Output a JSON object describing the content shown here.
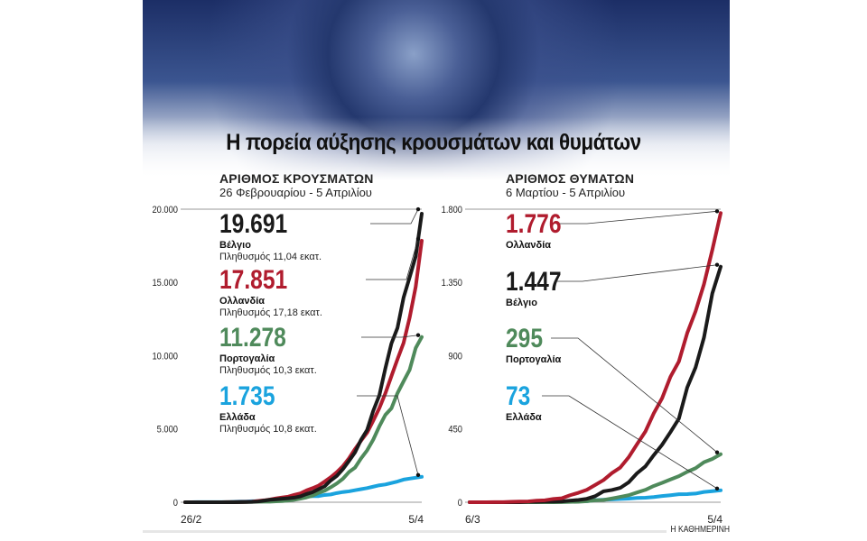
{
  "title": "Η πορεία αύξησης κρουσμάτων και θυμάτων",
  "credit": "Η ΚΑΘΗΜΕΡΙΝΗ",
  "chart_data": [
    {
      "type": "line",
      "title": "ΑΡΙΘΜΟΣ ΚΡΟΥΣΜΑΤΩΝ",
      "subtitle": "26 Φεβρουαρίου - 5 Απριλίου",
      "x_tick_labels": [
        "26/2",
        "5/4"
      ],
      "y_ticks": [
        0,
        5000,
        10000,
        15000,
        20000
      ],
      "y_tick_labels": [
        "0",
        "5.000",
        "10.000",
        "15.000",
        "20.000"
      ],
      "ylim": [
        0,
        20000
      ],
      "grid": "top line only",
      "series": [
        {
          "name": "Βέλγιο",
          "label": "19.691",
          "note": "Πληθυσμός 11,04 εκατ.",
          "color": "#1a1a1a",
          "values": [
            0,
            0,
            0,
            0,
            0,
            0,
            1,
            1,
            2,
            8,
            13,
            23,
            50,
            109,
            169,
            200,
            239,
            267,
            314,
            399,
            559,
            689,
            886,
            1085,
            1486,
            1795,
            2257,
            2815,
            3401,
            4269,
            4937,
            6235,
            7284,
            9134,
            10836,
            11899,
            13964,
            15348,
            16770,
            19691
          ]
        },
        {
          "name": "Ολλανδία",
          "label": "17.851",
          "note": "Πληθυσμός 17,18 εκατ.",
          "color": "#b01c2e",
          "values": [
            0,
            0,
            0,
            0,
            1,
            1,
            2,
            7,
            10,
            18,
            24,
            38,
            82,
            128,
            188,
            265,
            321,
            382,
            503,
            603,
            804,
            959,
            1135,
            1413,
            1705,
            2051,
            2460,
            2994,
            3631,
            4204,
            4749,
            5560,
            6412,
            7431,
            8603,
            9762,
            10866,
            12595,
            14697,
            17851
          ]
        },
        {
          "name": "Πορτογαλία",
          "label": "11.278",
          "note": "Πληθυσμός 10,3 εκατ.",
          "color": "#4f8a5b",
          "values": [
            0,
            0,
            0,
            0,
            0,
            0,
            2,
            4,
            6,
            9,
            13,
            21,
            30,
            39,
            41,
            59,
            78,
            112,
            169,
            245,
            331,
            448,
            642,
            785,
            1020,
            1280,
            1600,
            2060,
            2362,
            2995,
            3544,
            4268,
            5170,
            5962,
            6408,
            7443,
            8251,
            9034,
            10524,
            11278
          ]
        },
        {
          "name": "Ελλάδα",
          "label": "1.735",
          "note": "Πληθυσμός 10,8 εκατ.",
          "color": "#1aa3de",
          "values": [
            1,
            3,
            4,
            4,
            7,
            7,
            7,
            9,
            31,
            45,
            46,
            73,
            73,
            89,
            99,
            99,
            190,
            228,
            331,
            331,
            387,
            418,
            418,
            495,
            530,
            624,
            695,
            743,
            821,
            892,
            966,
            1061,
            1156,
            1212,
            1314,
            1415,
            1544,
            1613,
            1673,
            1735
          ]
        }
      ]
    },
    {
      "type": "line",
      "title": "ΑΡΙΘΜΟΣ ΘΥΜΑΤΩΝ",
      "subtitle": "6 Μαρτίου - 5 Απριλίου",
      "x_tick_labels": [
        "6/3",
        "5/4"
      ],
      "y_ticks": [
        0,
        450,
        900,
        1350,
        1800
      ],
      "y_tick_labels": [
        "0",
        "450",
        "900",
        "1.350",
        "1.800"
      ],
      "ylim": [
        0,
        1800
      ],
      "grid": "top line only",
      "series": [
        {
          "name": "Ολλανδία",
          "label": "1.776",
          "color": "#b01c2e",
          "values": [
            0,
            0,
            0,
            1,
            1,
            3,
            4,
            5,
            10,
            12,
            20,
            24,
            43,
            58,
            76,
            106,
            136,
            179,
            213,
            276,
            356,
            434,
            546,
            639,
            771,
            864,
            1039,
            1173,
            1339,
            1550,
            1776
          ]
        },
        {
          "name": "Βέλγιο",
          "label": "1.447",
          "color": "#1a1a1a",
          "values": [
            0,
            0,
            0,
            0,
            0,
            0,
            0,
            3,
            3,
            4,
            4,
            5,
            10,
            14,
            21,
            37,
            67,
            75,
            88,
            122,
            178,
            220,
            289,
            353,
            431,
            513,
            705,
            828,
            1011,
            1283,
            1447
          ]
        },
        {
          "name": "Πορτογαλία",
          "label": "295",
          "color": "#4f8a5b",
          "values": [
            0,
            0,
            0,
            0,
            0,
            0,
            0,
            0,
            0,
            0,
            0,
            1,
            2,
            3,
            6,
            12,
            14,
            23,
            33,
            43,
            60,
            76,
            100,
            119,
            140,
            160,
            187,
            209,
            246,
            266,
            295
          ]
        },
        {
          "name": "Ελλάδα",
          "label": "73",
          "color": "#1aa3de",
          "values": [
            0,
            0,
            0,
            0,
            0,
            0,
            0,
            1,
            1,
            1,
            3,
            4,
            5,
            6,
            6,
            13,
            15,
            17,
            20,
            22,
            26,
            28,
            32,
            38,
            43,
            49,
            50,
            53,
            63,
            68,
            73
          ]
        }
      ]
    }
  ]
}
